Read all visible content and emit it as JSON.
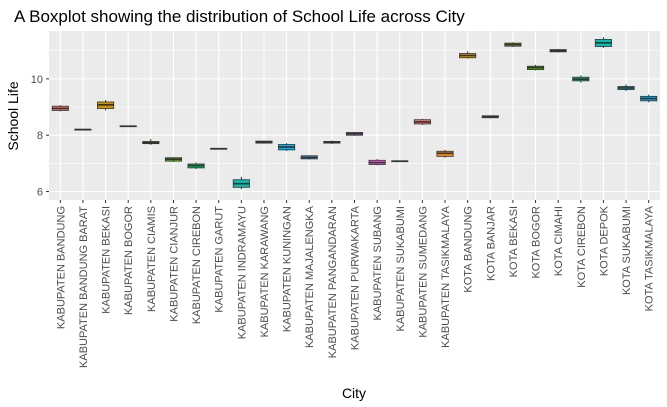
{
  "chart_data": {
    "type": "boxplot",
    "title": "A Boxplot showing the distribution of School Life across City",
    "xlabel": "City",
    "ylabel": "School Life",
    "ylim": [
      5.7,
      11.7
    ],
    "yticks": [
      6,
      8,
      10
    ],
    "grid": true,
    "legend": "none",
    "categories": [
      "KABUPATEN BANDUNG",
      "KABUPATEN BANDUNG BARAT",
      "KABUPATEN BEKASI",
      "KABUPATEN BOGOR",
      "KABUPATEN CIAMIS",
      "KABUPATEN CIANJUR",
      "KABUPATEN CIREBON",
      "KABUPATEN GARUT",
      "KABUPATEN INDRAMAYU",
      "KABUPATEN KARAWANG",
      "KABUPATEN KUNINGAN",
      "KABUPATEN MAJALENGKA",
      "KABUPATEN PANGANDARAN",
      "KABUPATEN PURWAKARTA",
      "KABUPATEN SUBANG",
      "KABUPATEN SUKABUMI",
      "KABUPATEN SUMEDANG",
      "KABUPATEN TASIKMALAYA",
      "KOTA BANDUNG",
      "KOTA BANJAR",
      "KOTA BEKASI",
      "KOTA BOGOR",
      "KOTA CIMAHI",
      "KOTA CIREBON",
      "KOTA DEPOK",
      "KOTA SUKABUMI",
      "KOTA TASIKMALAYA"
    ],
    "boxes": [
      {
        "min": 8.85,
        "q1": 8.88,
        "median": 8.95,
        "q3": 9.03,
        "max": 9.07,
        "color": "#F8766D"
      },
      {
        "min": 8.19,
        "q1": 8.19,
        "median": 8.2,
        "q3": 8.21,
        "max": 8.21,
        "color": "#E7851E"
      },
      {
        "min": 8.88,
        "q1": 8.95,
        "median": 9.08,
        "q3": 9.18,
        "max": 9.25,
        "color": "#D09400"
      },
      {
        "min": 8.31,
        "q1": 8.31,
        "median": 8.32,
        "q3": 8.33,
        "max": 8.33,
        "color": "#B2A100"
      },
      {
        "min": 7.66,
        "q1": 7.7,
        "median": 7.73,
        "q3": 7.78,
        "max": 7.86,
        "color": "#89AC00"
      },
      {
        "min": 7.05,
        "q1": 7.08,
        "median": 7.15,
        "q3": 7.2,
        "max": 7.22,
        "color": "#45B500"
      },
      {
        "min": 6.8,
        "q1": 6.84,
        "median": 6.92,
        "q3": 6.98,
        "max": 7.03,
        "color": "#00BC51"
      },
      {
        "min": 7.5,
        "q1": 7.51,
        "median": 7.52,
        "q3": 7.53,
        "max": 7.53,
        "color": "#00C087"
      },
      {
        "min": 6.08,
        "q1": 6.15,
        "median": 6.28,
        "q3": 6.42,
        "max": 6.52,
        "color": "#00C0B2"
      },
      {
        "min": 7.7,
        "q1": 7.72,
        "median": 7.75,
        "q3": 7.79,
        "max": 7.8,
        "color": "#00BCD6"
      },
      {
        "min": 7.44,
        "q1": 7.48,
        "median": 7.58,
        "q3": 7.67,
        "max": 7.72,
        "color": "#00B3F2"
      },
      {
        "min": 7.14,
        "q1": 7.16,
        "median": 7.21,
        "q3": 7.27,
        "max": 7.29,
        "color": "#29A3FF"
      },
      {
        "min": 7.69,
        "q1": 7.72,
        "median": 7.75,
        "q3": 7.78,
        "max": 7.81,
        "color": "#9C8DFF"
      },
      {
        "min": 7.98,
        "q1": 8.0,
        "median": 8.05,
        "q3": 8.1,
        "max": 8.12,
        "color": "#D277FF"
      },
      {
        "min": 6.93,
        "q1": 6.96,
        "median": 7.03,
        "q3": 7.11,
        "max": 7.15,
        "color": "#F161DD"
      },
      {
        "min": 7.05,
        "q1": 7.06,
        "median": 7.08,
        "q3": 7.09,
        "max": 7.1,
        "color": "#FF61C7"
      },
      {
        "min": 8.36,
        "q1": 8.4,
        "median": 8.47,
        "q3": 8.55,
        "max": 8.58,
        "color": "#F8766D"
      },
      {
        "min": 7.2,
        "q1": 7.25,
        "median": 7.36,
        "q3": 7.43,
        "max": 7.48,
        "color": "#E7851E"
      },
      {
        "min": 10.72,
        "q1": 10.75,
        "median": 10.83,
        "q3": 10.9,
        "max": 10.98,
        "color": "#D09400"
      },
      {
        "min": 8.6,
        "q1": 8.62,
        "median": 8.66,
        "q3": 8.69,
        "max": 8.7,
        "color": "#B2A100"
      },
      {
        "min": 11.13,
        "q1": 11.16,
        "median": 11.22,
        "q3": 11.27,
        "max": 11.3,
        "color": "#89AC00"
      },
      {
        "min": 10.3,
        "q1": 10.33,
        "median": 10.4,
        "q3": 10.45,
        "max": 10.5,
        "color": "#45B500"
      },
      {
        "min": 10.94,
        "q1": 10.96,
        "median": 11.0,
        "q3": 11.04,
        "max": 11.06,
        "color": "#00BC51"
      },
      {
        "min": 9.87,
        "q1": 9.93,
        "median": 9.99,
        "q3": 10.06,
        "max": 10.12,
        "color": "#00C087"
      },
      {
        "min": 11.1,
        "q1": 11.15,
        "median": 11.28,
        "q3": 11.4,
        "max": 11.48,
        "color": "#00C0B2"
      },
      {
        "min": 9.57,
        "q1": 9.62,
        "median": 9.68,
        "q3": 9.73,
        "max": 9.8,
        "color": "#00BCD6"
      },
      {
        "min": 9.17,
        "q1": 9.22,
        "median": 9.3,
        "q3": 9.38,
        "max": 9.44,
        "color": "#00B3F2"
      }
    ]
  }
}
